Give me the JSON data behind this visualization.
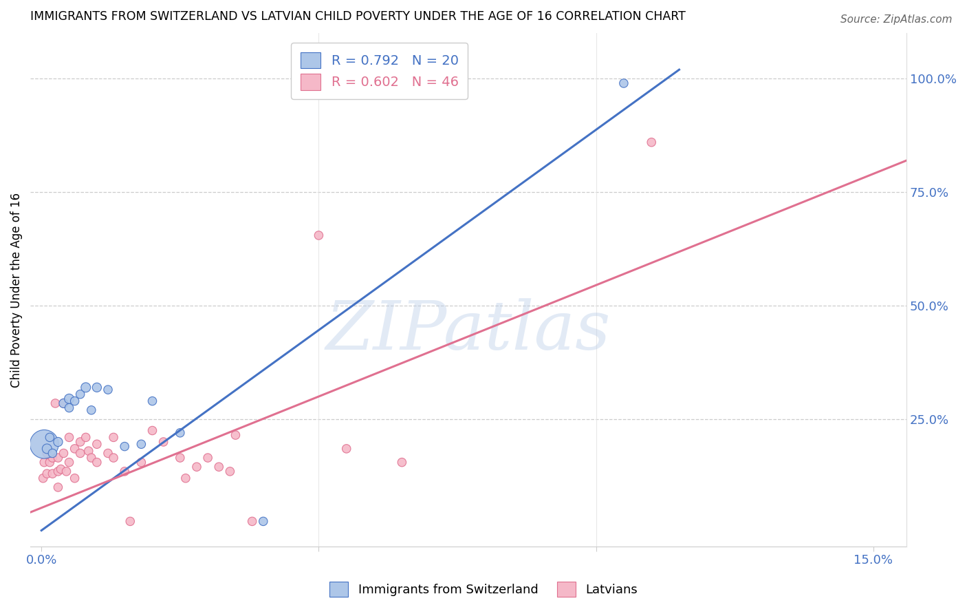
{
  "title": "IMMIGRANTS FROM SWITZERLAND VS LATVIAN CHILD POVERTY UNDER THE AGE OF 16 CORRELATION CHART",
  "source": "Source: ZipAtlas.com",
  "ylabel": "Child Poverty Under the Age of 16",
  "xlim": [
    -0.002,
    0.156
  ],
  "ylim": [
    -0.03,
    1.1
  ],
  "blue_R": 0.792,
  "blue_N": 20,
  "pink_R": 0.602,
  "pink_N": 46,
  "blue_color": "#adc6e8",
  "pink_color": "#f5b8c8",
  "blue_line_color": "#4472c4",
  "pink_line_color": "#e07090",
  "legend_label_blue": "Immigrants from Switzerland",
  "legend_label_pink": "Latvians",
  "watermark": "ZIPatlas",
  "blue_dots": [
    [
      0.0005,
      0.195
    ],
    [
      0.001,
      0.185
    ],
    [
      0.0015,
      0.21
    ],
    [
      0.002,
      0.175
    ],
    [
      0.003,
      0.2
    ],
    [
      0.004,
      0.285
    ],
    [
      0.005,
      0.295
    ],
    [
      0.005,
      0.275
    ],
    [
      0.006,
      0.29
    ],
    [
      0.007,
      0.305
    ],
    [
      0.008,
      0.32
    ],
    [
      0.009,
      0.27
    ],
    [
      0.01,
      0.32
    ],
    [
      0.012,
      0.315
    ],
    [
      0.015,
      0.19
    ],
    [
      0.018,
      0.195
    ],
    [
      0.02,
      0.29
    ],
    [
      0.025,
      0.22
    ],
    [
      0.04,
      0.025
    ],
    [
      0.105,
      0.99
    ]
  ],
  "blue_dot_sizes": [
    900,
    100,
    80,
    80,
    90,
    90,
    100,
    80,
    80,
    80,
    100,
    80,
    90,
    80,
    80,
    80,
    80,
    80,
    80,
    80
  ],
  "pink_dots": [
    [
      0.0003,
      0.12
    ],
    [
      0.0005,
      0.155
    ],
    [
      0.001,
      0.175
    ],
    [
      0.001,
      0.13
    ],
    [
      0.0015,
      0.155
    ],
    [
      0.002,
      0.165
    ],
    [
      0.002,
      0.13
    ],
    [
      0.0025,
      0.285
    ],
    [
      0.003,
      0.165
    ],
    [
      0.003,
      0.135
    ],
    [
      0.003,
      0.1
    ],
    [
      0.0035,
      0.14
    ],
    [
      0.004,
      0.285
    ],
    [
      0.004,
      0.175
    ],
    [
      0.0045,
      0.135
    ],
    [
      0.005,
      0.21
    ],
    [
      0.005,
      0.155
    ],
    [
      0.006,
      0.185
    ],
    [
      0.006,
      0.12
    ],
    [
      0.007,
      0.2
    ],
    [
      0.007,
      0.175
    ],
    [
      0.008,
      0.21
    ],
    [
      0.0085,
      0.18
    ],
    [
      0.009,
      0.165
    ],
    [
      0.01,
      0.195
    ],
    [
      0.01,
      0.155
    ],
    [
      0.012,
      0.175
    ],
    [
      0.013,
      0.21
    ],
    [
      0.013,
      0.165
    ],
    [
      0.015,
      0.135
    ],
    [
      0.016,
      0.025
    ],
    [
      0.018,
      0.155
    ],
    [
      0.02,
      0.225
    ],
    [
      0.022,
      0.2
    ],
    [
      0.025,
      0.165
    ],
    [
      0.026,
      0.12
    ],
    [
      0.028,
      0.145
    ],
    [
      0.03,
      0.165
    ],
    [
      0.032,
      0.145
    ],
    [
      0.034,
      0.135
    ],
    [
      0.038,
      0.025
    ],
    [
      0.05,
      0.655
    ],
    [
      0.055,
      0.185
    ],
    [
      0.065,
      0.155
    ],
    [
      0.11,
      0.86
    ],
    [
      0.035,
      0.215
    ]
  ],
  "pink_dot_sizes": [
    80,
    80,
    80,
    80,
    80,
    80,
    80,
    80,
    80,
    80,
    80,
    80,
    80,
    80,
    80,
    80,
    80,
    80,
    80,
    80,
    80,
    80,
    80,
    80,
    80,
    80,
    80,
    80,
    80,
    80,
    80,
    80,
    80,
    80,
    80,
    80,
    80,
    80,
    80,
    80,
    80,
    80,
    80,
    80,
    80,
    80
  ],
  "blue_line": {
    "x0": 0.0,
    "x1": 0.115,
    "y0": 0.005,
    "y1": 1.02
  },
  "pink_line": {
    "x0": -0.002,
    "x1": 0.156,
    "y0": 0.045,
    "y1": 0.82
  }
}
